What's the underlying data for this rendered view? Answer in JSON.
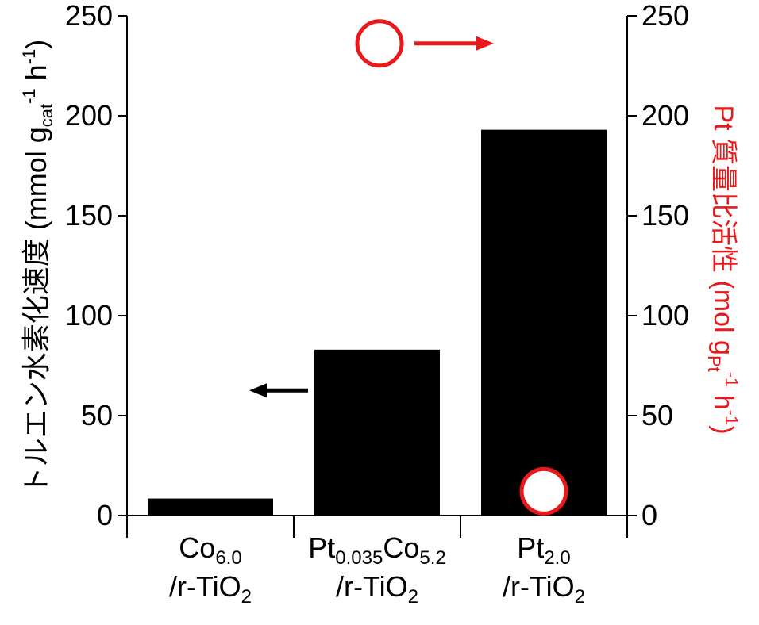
{
  "chart_data": {
    "type": "bar",
    "categories": [
      {
        "main": "Co",
        "sub": "6.0",
        "line2": "/r-TiO",
        "line2_sub": "2"
      },
      {
        "main": "Pt",
        "sub": "0.035",
        "main2": "Co",
        "sub2": "5.2",
        "line2": "/r-TiO",
        "line2_sub": "2"
      },
      {
        "main": "Pt",
        "sub": "2.0",
        "line2": "/r-TiO",
        "line2_sub": "2"
      }
    ],
    "series": [
      {
        "axis": "left",
        "marker": "bar",
        "color": "#000000",
        "values": [
          8.5,
          83,
          193
        ]
      },
      {
        "axis": "right",
        "marker": "open-circle",
        "color": "#e8191a",
        "values": [
          null,
          null,
          9
        ]
      }
    ],
    "legend_marker": {
      "value": 235,
      "marker": "open-circle",
      "color": "#e8191a"
    },
    "left_axis": {
      "label": "トルエン水素化速度 (mmol g",
      "label_sub": "cat",
      "label_sup1": "-1",
      "label_mid": " h",
      "label_sup2": "-1",
      "label_end": ")",
      "ylim": [
        0,
        250
      ],
      "ticks": [
        "0",
        "50",
        "100",
        "150",
        "200",
        "250"
      ]
    },
    "right_axis": {
      "label": "Pt 質量比活性 (mol g",
      "label_sub": "Pt",
      "label_sup1": "-1",
      "label_mid": " h",
      "label_sup2": "-1",
      "label_end": ")",
      "ylim": [
        0,
        250
      ],
      "ticks": [
        "0",
        "50",
        "100",
        "150",
        "200",
        "250"
      ],
      "color": "#e8191a"
    },
    "annotations": [
      {
        "type": "arrow",
        "direction": "left",
        "color": "#000000",
        "at_value": 65,
        "meaning": "left axis"
      },
      {
        "type": "arrow",
        "direction": "right",
        "color": "#e8191a",
        "at_value": 235,
        "meaning": "right axis"
      }
    ],
    "grid": false
  }
}
